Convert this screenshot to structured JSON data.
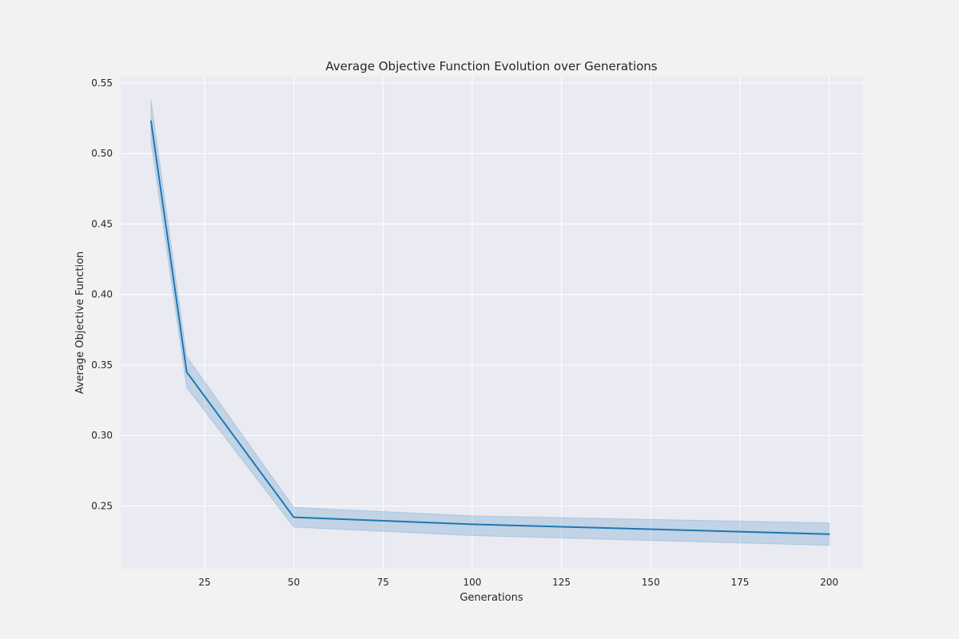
{
  "chart_data": {
    "type": "line",
    "title": "Average Objective Function Evolution over Generations",
    "xlabel": "Generations",
    "ylabel": "Average Objective Function",
    "xlim": [
      1.5,
      209.5
    ],
    "ylim": [
      0.2055,
      0.5545
    ],
    "xticks": [
      25,
      50,
      75,
      100,
      125,
      150,
      175,
      200
    ],
    "yticks": [
      0.25,
      0.3,
      0.35,
      0.4,
      0.45,
      0.5,
      0.55
    ],
    "xtick_labels": [
      "25",
      "50",
      "75",
      "100",
      "125",
      "150",
      "175",
      "200"
    ],
    "ytick_labels": [
      "0.25",
      "0.30",
      "0.35",
      "0.40",
      "0.45",
      "0.50",
      "0.55"
    ],
    "grid": true,
    "series": [
      {
        "x": [
          10,
          20,
          50,
          100,
          200
        ],
        "y": [
          0.523,
          0.345,
          0.242,
          0.237,
          0.23
        ],
        "ci_lower": [
          0.508,
          0.334,
          0.235,
          0.229,
          0.222
        ],
        "ci_upper": [
          0.538,
          0.356,
          0.249,
          0.243,
          0.238
        ],
        "color": "#1f77b4"
      }
    ]
  }
}
